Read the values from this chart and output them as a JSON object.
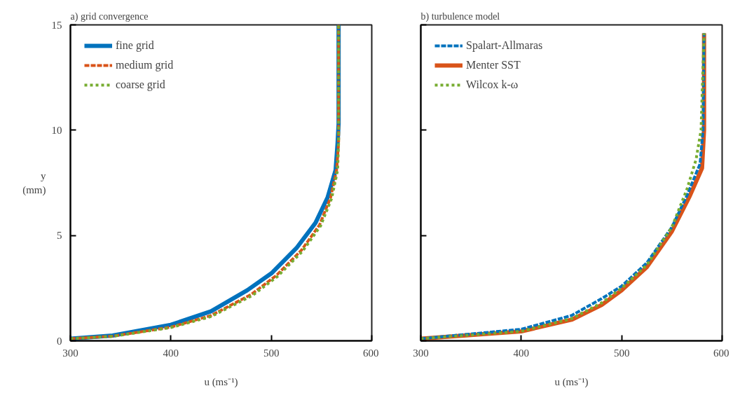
{
  "chart_data": [
    {
      "type": "line",
      "title": "a) grid convergence",
      "xlabel": "u (ms⁻¹)",
      "ylabel": "y\n(mm)",
      "xlim": [
        300,
        600
      ],
      "ylim": [
        0,
        15
      ],
      "xticks": [
        300,
        400,
        500,
        600
      ],
      "yticks": [
        0,
        5,
        10,
        15
      ],
      "grid": false,
      "legend": "top left",
      "series": [
        {
          "name": "fine grid",
          "color": "#0072bd",
          "line_style": "solid",
          "x": [
            300,
            342,
            400,
            440,
            476,
            500,
            525,
            544,
            556,
            564,
            566,
            567,
            567
          ],
          "values": [
            0.1,
            0.25,
            0.76,
            1.4,
            2.4,
            3.2,
            4.4,
            5.6,
            6.8,
            8.1,
            9.4,
            10.3,
            15
          ]
        },
        {
          "name": "medium grid",
          "color": "#d95319",
          "line_style": "dashed",
          "x": [
            300,
            342,
            400,
            440,
            480,
            505,
            530,
            548,
            559,
            565,
            567,
            567
          ],
          "values": [
            0.1,
            0.22,
            0.65,
            1.2,
            2.2,
            3.1,
            4.3,
            5.5,
            6.8,
            8.1,
            9.4,
            15
          ]
        },
        {
          "name": "coarse grid",
          "color": "#77ac30",
          "line_style": "dotted",
          "x": [
            300,
            342,
            400,
            440,
            481,
            506,
            531,
            549,
            560,
            566,
            567,
            567
          ],
          "values": [
            0.1,
            0.21,
            0.63,
            1.15,
            2.15,
            3.05,
            4.25,
            5.45,
            6.75,
            8.1,
            9.4,
            15
          ]
        }
      ]
    },
    {
      "type": "line",
      "title": "b) turbulence model",
      "xlabel": "u (ms⁻¹)",
      "xlim": [
        300,
        600
      ],
      "ylim": [
        0,
        15
      ],
      "xticks": [
        300,
        400,
        500,
        600
      ],
      "yticks": [
        0,
        5,
        10,
        15
      ],
      "tick_labels": "x",
      "grid": false,
      "legend": "top left",
      "series": [
        {
          "name": "Spalart-Allmaras",
          "color": "#0072bd",
          "line_style": "dashed",
          "x": [
            300,
            400,
            450,
            480,
            500,
            525,
            550,
            565,
            578,
            581,
            582
          ],
          "values": [
            0.1,
            0.55,
            1.2,
            2.0,
            2.6,
            3.7,
            5.4,
            6.9,
            8.4,
            10,
            14.6
          ]
        },
        {
          "name": "Menter SST",
          "color": "#d95319",
          "line_style": "solid",
          "x": [
            300,
            400,
            450,
            480,
            500,
            525,
            550,
            568,
            580,
            582,
            582
          ],
          "values": [
            0.1,
            0.45,
            1.0,
            1.7,
            2.4,
            3.5,
            5.2,
            6.9,
            8.2,
            10,
            14.6
          ]
        },
        {
          "name": "Wilcox k-ω",
          "color": "#77ac30",
          "line_style": "dotted",
          "x": [
            300,
            400,
            450,
            480,
            500,
            525,
            550,
            565,
            574,
            579,
            582
          ],
          "values": [
            0.1,
            0.45,
            1.05,
            1.8,
            2.5,
            3.6,
            5.4,
            7.2,
            8.6,
            10,
            14.6
          ]
        }
      ]
    }
  ]
}
